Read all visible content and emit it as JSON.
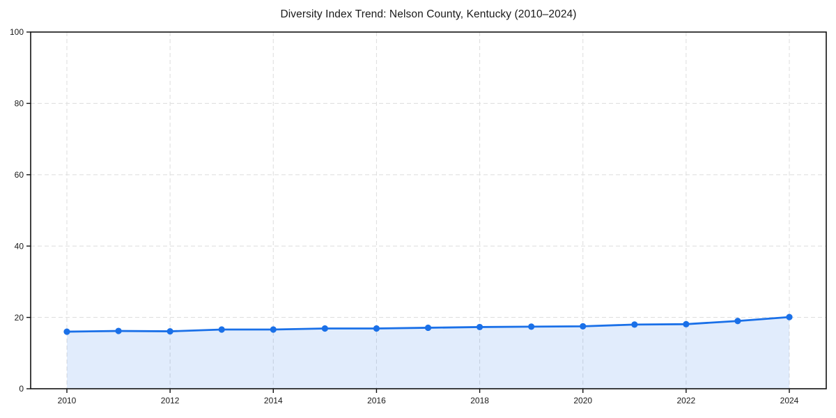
{
  "chart_data": {
    "type": "line",
    "title": "Diversity Index Trend: Nelson County, Kentucky (2010–2024)",
    "x": [
      2010,
      2011,
      2012,
      2013,
      2014,
      2015,
      2016,
      2017,
      2018,
      2019,
      2020,
      2021,
      2022,
      2023,
      2024
    ],
    "values": [
      16.0,
      16.2,
      16.1,
      16.6,
      16.6,
      16.9,
      16.9,
      17.1,
      17.3,
      17.4,
      17.5,
      18.0,
      18.1,
      19.0,
      20.1
    ],
    "xlabel": "",
    "ylabel": "",
    "ylim": [
      0,
      100
    ],
    "yticks": [
      0,
      20,
      40,
      60,
      80,
      100
    ],
    "xticks": [
      2010,
      2012,
      2014,
      2016,
      2018,
      2020,
      2022,
      2024
    ],
    "grid": "dashed",
    "legend": "none",
    "area_fill": true,
    "marker": "circle",
    "line_color": "#1a70e8",
    "fill_color": "rgba(26,112,232,0.13)",
    "grid_color": "#e0e0e0",
    "spine_color": "#111111",
    "text_color": "#1a1a1a",
    "background_color": "#ffffff"
  }
}
